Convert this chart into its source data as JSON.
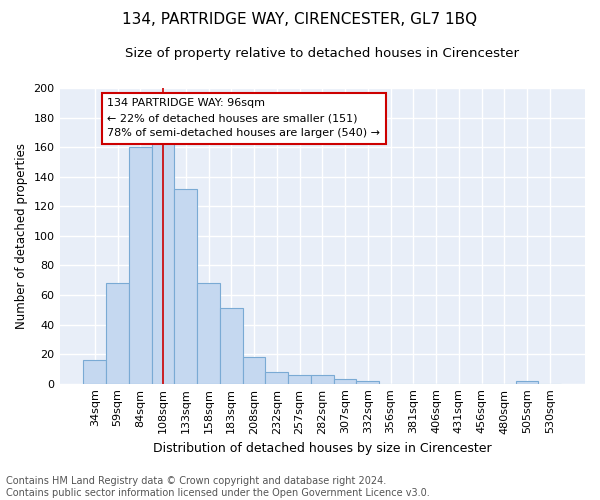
{
  "title": "134, PARTRIDGE WAY, CIRENCESTER, GL7 1BQ",
  "subtitle": "Size of property relative to detached houses in Cirencester",
  "xlabel": "Distribution of detached houses by size in Cirencester",
  "ylabel": "Number of detached properties",
  "bar_labels": [
    "34sqm",
    "59sqm",
    "84sqm",
    "108sqm",
    "133sqm",
    "158sqm",
    "183sqm",
    "208sqm",
    "232sqm",
    "257sqm",
    "282sqm",
    "307sqm",
    "332sqm",
    "356sqm",
    "381sqm",
    "406sqm",
    "431sqm",
    "456sqm",
    "480sqm",
    "505sqm",
    "530sqm"
  ],
  "bar_values": [
    16,
    68,
    160,
    163,
    132,
    68,
    51,
    18,
    8,
    6,
    6,
    3,
    2,
    0,
    0,
    0,
    0,
    0,
    0,
    2,
    0
  ],
  "bar_color": "#c5d8f0",
  "bar_edge_color": "#7aaad4",
  "bg_color": "#e8eef8",
  "grid_color": "#ffffff",
  "vline_x": 3.0,
  "vline_color": "#cc0000",
  "annotation_text": "134 PARTRIDGE WAY: 96sqm\n← 22% of detached houses are smaller (151)\n78% of semi-detached houses are larger (540) →",
  "annotation_box_color": "#ffffff",
  "annotation_box_edge": "#cc0000",
  "ylim": [
    0,
    200
  ],
  "yticks": [
    0,
    20,
    40,
    60,
    80,
    100,
    120,
    140,
    160,
    180,
    200
  ],
  "footnote": "Contains HM Land Registry data © Crown copyright and database right 2024.\nContains public sector information licensed under the Open Government Licence v3.0.",
  "title_fontsize": 11,
  "subtitle_fontsize": 9.5,
  "xlabel_fontsize": 9,
  "ylabel_fontsize": 8.5,
  "tick_fontsize": 8,
  "annot_fontsize": 8,
  "footnote_fontsize": 7
}
